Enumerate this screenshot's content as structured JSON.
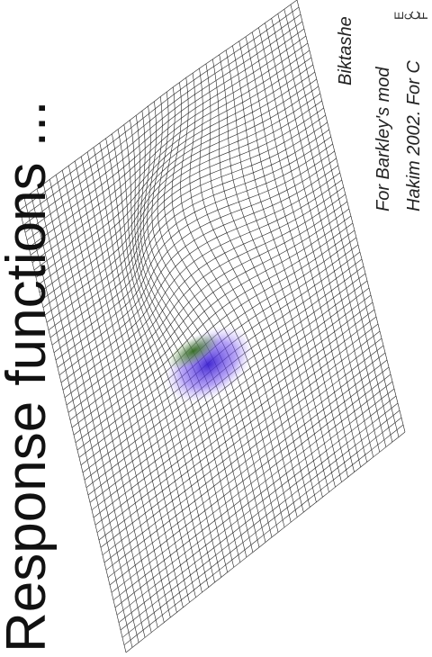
{
  "slide": {
    "title": "Response functions ...",
    "corner_fragments": [
      "E",
      "c",
      "C",
      "F"
    ],
    "credit": "Biktashe",
    "notes": [
      "For Barkley's mod",
      "Hakim 2002. For C"
    ]
  }
}
